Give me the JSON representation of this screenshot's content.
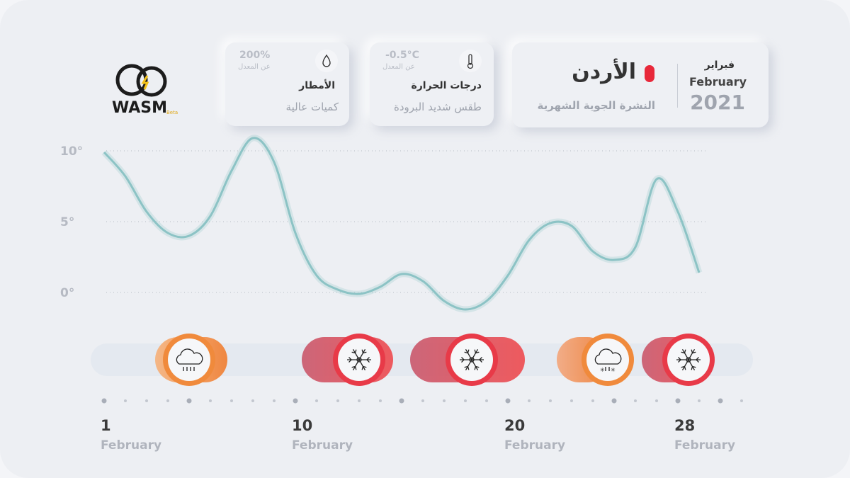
{
  "logo": {
    "name": "WASM",
    "tag": "Beta"
  },
  "header": {
    "month_ar": "فبراير",
    "month_en": "February",
    "year": "2021",
    "country": "الأردن",
    "subtitle": "النشرة الجوية الشهرية"
  },
  "cards": [
    {
      "title": "درجات الحرارة",
      "desc": "طقس شديد البرودة",
      "value": "-0.5°C",
      "note": "عن المعدل",
      "icon": "thermometer"
    },
    {
      "title": "الأمطار",
      "desc": "كميات عالية",
      "value": "200%",
      "note": "عن المعدل",
      "icon": "drop"
    }
  ],
  "chart_data": {
    "type": "line",
    "x": [
      1,
      2,
      3,
      4,
      5,
      6,
      7,
      8,
      9,
      10,
      11,
      12,
      13,
      14,
      15,
      16,
      17,
      18,
      19,
      20,
      21,
      22,
      23,
      24,
      25,
      26,
      27,
      28,
      29
    ],
    "series": [
      {
        "name": "temperature",
        "color": "#8cc3c5",
        "values": [
          9.9,
          8.2,
          5.7,
          4.2,
          4.0,
          5.4,
          8.6,
          10.9,
          9.2,
          4.2,
          1.2,
          0.2,
          -0.1,
          0.4,
          1.3,
          0.8,
          -0.6,
          -1.2,
          -0.6,
          1.2,
          3.7,
          4.9,
          4.7,
          2.9,
          2.3,
          3.2,
          8.0,
          5.7,
          1.4
        ]
      }
    ],
    "xlim": [
      1,
      31
    ],
    "ylim": [
      -2,
      12
    ],
    "yticks": [
      {
        "value": 10,
        "label": "10°"
      },
      {
        "value": 5,
        "label": "5°"
      },
      {
        "value": 0,
        "label": "0°"
      }
    ],
    "xticks": [
      1,
      10,
      20,
      28
    ],
    "xtick_months": [
      "February",
      "February",
      "February",
      "February"
    ],
    "axis_dots": [
      1,
      2,
      3,
      4,
      5,
      6,
      7,
      8,
      9,
      10,
      11,
      12,
      13,
      14,
      15,
      16,
      17,
      18,
      19,
      20,
      21,
      22,
      23,
      24,
      25,
      26,
      27,
      28,
      29,
      30,
      31
    ],
    "major_dots": [
      5,
      15,
      25,
      30
    ],
    "grid": true,
    "events": [
      {
        "kind": "rain",
        "start": 3.4,
        "end": 6.8,
        "at": 5
      },
      {
        "kind": "snow",
        "start": 10.3,
        "end": 14.6,
        "at": 13
      },
      {
        "kind": "snow",
        "start": 15.4,
        "end": 20.8,
        "at": 18.3
      },
      {
        "kind": "mix",
        "start": 22.3,
        "end": 24.8,
        "at": 24.7
      },
      {
        "kind": "snow",
        "start": 26.3,
        "end": 29.3,
        "at": 28.5
      }
    ]
  }
}
